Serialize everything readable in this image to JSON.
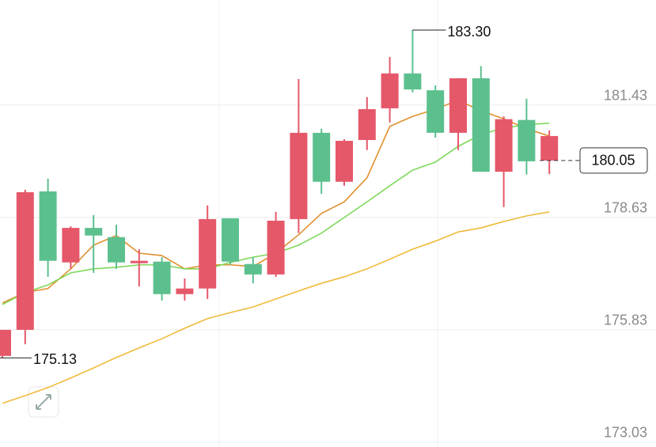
{
  "chart_data": {
    "type": "candlestick",
    "categories": [
      null,
      null,
      null,
      null,
      null,
      null,
      null,
      null,
      null,
      null,
      null,
      null,
      null,
      null,
      null,
      null,
      null,
      null,
      null,
      null,
      null,
      null,
      null,
      null,
      null
    ],
    "open": [
      175.83,
      179.26,
      177.55,
      178.37,
      178.18,
      177.51,
      177.55,
      176.72,
      176.86,
      178.59,
      177.53,
      177.21,
      178.55,
      180.74,
      179.52,
      180.54,
      181.33,
      182.22,
      181.82,
      180.74,
      182.1,
      179.77,
      181.08,
      180.03,
      180.66
    ],
    "high": [
      175.83,
      179.32,
      179.6,
      178.41,
      178.69,
      178.45,
      177.84,
      177.64,
      177.11,
      178.93,
      178.61,
      177.64,
      178.77,
      182.08,
      180.84,
      180.58,
      181.63,
      182.63,
      183.3,
      181.92,
      182.1,
      182.4,
      181.15,
      181.59,
      180.8
    ],
    "low": [
      175.13,
      175.47,
      177.15,
      177.35,
      177.25,
      177.35,
      176.91,
      176.56,
      176.56,
      176.6,
      177.45,
      176.99,
      177.15,
      178.24,
      179.22,
      179.42,
      180.31,
      181.0,
      181.75,
      180.62,
      180.31,
      179.77,
      178.89,
      179.7,
      179.71
    ],
    "close": [
      175.18,
      175.83,
      179.28,
      177.51,
      178.37,
      178.14,
      177.49,
      177.53,
      176.72,
      176.86,
      178.61,
      177.47,
      177.21,
      178.59,
      180.74,
      179.52,
      180.56,
      181.35,
      182.22,
      181.8,
      180.74,
      182.1,
      179.77,
      181.06,
      180.05
    ],
    "up_color": "#5cc08e",
    "down_color": "#e5586a",
    "lines": [
      {
        "color": "#e0902f",
        "values": [
          176.5,
          176.76,
          176.86,
          177.35,
          177.94,
          178.18,
          177.74,
          177.68,
          177.35,
          177.45,
          177.45,
          177.41,
          177.74,
          178.2,
          178.73,
          179.02,
          179.62,
          180.9,
          181.15,
          181.33,
          181.55,
          181.29,
          181.09,
          180.84,
          180.66
        ]
      },
      {
        "color": "#7fd85a",
        "values": [
          176.46,
          176.76,
          176.95,
          177.25,
          177.35,
          177.39,
          177.45,
          177.45,
          177.35,
          177.35,
          177.51,
          177.64,
          177.74,
          177.94,
          178.24,
          178.63,
          179.02,
          179.42,
          179.81,
          180.01,
          180.4,
          180.7,
          180.86,
          180.94,
          180.98
        ]
      },
      {
        "color": "#f0bb3c",
        "values": [
          174.0,
          174.19,
          174.39,
          174.63,
          174.88,
          175.14,
          175.38,
          175.61,
          175.87,
          176.11,
          176.26,
          176.4,
          176.6,
          176.8,
          176.99,
          177.15,
          177.35,
          177.59,
          177.84,
          178.04,
          178.27,
          178.37,
          178.53,
          178.67,
          178.77
        ]
      }
    ],
    "ylim": [
      172.91,
      184.05
    ],
    "yticks": [
      173.03,
      175.83,
      178.63,
      181.43
    ],
    "grid": true,
    "max_label": "183.30",
    "min_label": "175.13",
    "last_label": "180.05"
  }
}
